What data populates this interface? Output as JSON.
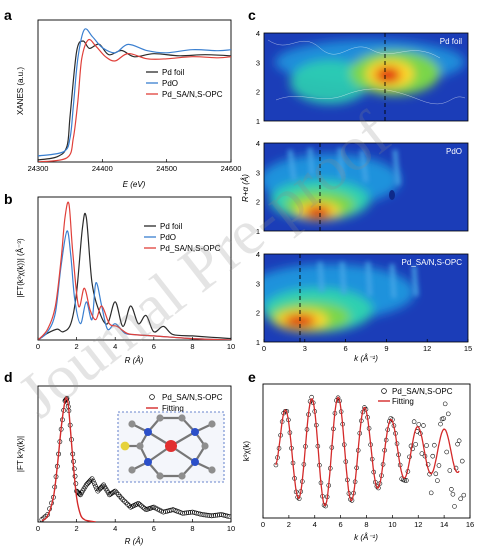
{
  "panels": {
    "a": {
      "label": "a",
      "ylabel": "XANES (a.u.)",
      "xlabel": "E (eV)",
      "xticks": [
        "24300",
        "24400",
        "24500",
        "24600"
      ],
      "legend": [
        "Pd foil",
        "PdO",
        "Pd_SA/N,S-OPC"
      ]
    },
    "b": {
      "label": "b",
      "ylabel": "|FT(k³χ(k))| (Å⁻³)",
      "xlabel": "R (Å)",
      "xticks": [
        "0",
        "2",
        "4",
        "6",
        "8",
        "10"
      ],
      "legend": [
        "Pd foil",
        "PdO",
        "Pd_SA/N,S-OPC"
      ]
    },
    "c": {
      "label": "c",
      "ylabel": "R+α (Å)",
      "xlabel": "k (Å⁻¹)",
      "xticks": [
        "0",
        "3",
        "6",
        "9",
        "12",
        "15"
      ],
      "yticks": [
        "1",
        "2",
        "3",
        "4"
      ],
      "subplots": [
        "Pd foil",
        "PdO",
        "Pd_SA/N,S-OPC"
      ]
    },
    "d": {
      "label": "d",
      "ylabel": "|FT k³χ(k)|",
      "xlabel": "R (Å)",
      "xticks": [
        "0",
        "2",
        "4",
        "6",
        "8",
        "10"
      ],
      "legend": [
        "Pd_SA/N,S-OPC",
        "Fitting"
      ]
    },
    "e": {
      "label": "e",
      "ylabel": "k³χ(k)",
      "xlabel": "k (Å⁻¹)",
      "xticks": [
        "0",
        "2",
        "4",
        "6",
        "8",
        "10",
        "12",
        "14",
        "16"
      ],
      "legend": [
        "Pd_SA/N,S-OPC",
        "Fitting"
      ]
    }
  },
  "watermark": "Journal Pre-proof",
  "colors": {
    "pd_foil": "#2b2b2b",
    "pdo": "#3a7fd0",
    "pd_sa": "#e0403a",
    "fitting": "#d42a2a",
    "wt_background": "#1b3db8",
    "wt_hot": "#e01010",
    "atom_pd": "#e23030",
    "atom_n": "#2b4fc9",
    "atom_s": "#e6d23a",
    "atom_c": "#8e8e8e"
  },
  "chart_data": [
    {
      "panel": "a",
      "type": "line",
      "xlabel": "E (eV)",
      "ylabel": "XANES (a.u.)",
      "xlim": [
        24300,
        24600
      ],
      "ylim": [
        0,
        1.35
      ],
      "series": [
        {
          "name": "Pd foil",
          "x": [
            24300,
            24330,
            24345,
            24350,
            24360,
            24370,
            24380,
            24395,
            24410,
            24430,
            24450,
            24480,
            24520,
            24560,
            24600
          ],
          "y": [
            0.02,
            0.05,
            0.15,
            0.45,
            1.05,
            1.15,
            1.08,
            1.12,
            1.02,
            1.06,
            1.0,
            1.03,
            1.01,
            1.02,
            1.01
          ]
        },
        {
          "name": "PdO",
          "x": [
            24300,
            24340,
            24350,
            24355,
            24362,
            24372,
            24385,
            24400,
            24420,
            24440,
            24470,
            24500,
            24540,
            24580,
            24600
          ],
          "y": [
            0.02,
            0.06,
            0.2,
            0.5,
            0.95,
            1.22,
            1.15,
            1.05,
            1.0,
            1.08,
            1.02,
            1.0,
            1.03,
            1.02,
            1.03
          ]
        },
        {
          "name": "Pd_SA/N,S-OPC",
          "x": [
            24300,
            24345,
            24355,
            24362,
            24368,
            24378,
            24390,
            24405,
            24420,
            24440,
            24470,
            24500,
            24540,
            24580,
            24600
          ],
          "y": [
            0.02,
            0.06,
            0.25,
            0.6,
            1.0,
            1.18,
            1.12,
            1.02,
            0.98,
            1.05,
            1.0,
            1.0,
            1.02,
            1.01,
            1.02
          ]
        }
      ]
    },
    {
      "panel": "b",
      "type": "line",
      "xlabel": "R (Å)",
      "ylabel": "|FT(k³χ(k))| (Å⁻³)",
      "xlim": [
        0,
        10
      ],
      "ylim": [
        0,
        1.05
      ],
      "series": [
        {
          "name": "Pd foil",
          "x": [
            0,
            0.5,
            1.0,
            1.3,
            1.7,
            2.0,
            2.3,
            2.5,
            2.8,
            3.2,
            3.6,
            4.0,
            4.4,
            4.8,
            5.2,
            5.6,
            6.0,
            6.5,
            7.0,
            8.0,
            9.0,
            10.0
          ],
          "y": [
            0.0,
            0.05,
            0.08,
            0.06,
            0.12,
            0.35,
            0.82,
            0.9,
            0.42,
            0.2,
            0.12,
            0.28,
            0.1,
            0.25,
            0.12,
            0.18,
            0.06,
            0.1,
            0.04,
            0.03,
            0.02,
            0.01
          ]
        },
        {
          "name": "PdO",
          "x": [
            0,
            0.5,
            0.9,
            1.2,
            1.5,
            1.7,
            1.9,
            2.2,
            2.5,
            2.8,
            3.0,
            3.3,
            3.6,
            4.0,
            4.5,
            5.0,
            6.0,
            7.0,
            8.0,
            10.0
          ],
          "y": [
            0.0,
            0.06,
            0.2,
            0.55,
            0.8,
            0.62,
            0.3,
            0.12,
            0.28,
            0.15,
            0.42,
            0.25,
            0.08,
            0.12,
            0.05,
            0.04,
            0.03,
            0.02,
            0.01,
            0.0
          ]
        },
        {
          "name": "Pd_SA/N,S-OPC",
          "x": [
            0,
            0.5,
            0.9,
            1.2,
            1.4,
            1.6,
            1.8,
            2.1,
            2.4,
            2.7,
            3.0,
            3.3,
            3.7,
            4.1,
            4.6,
            5.0,
            6.0,
            7.0,
            8.0,
            10.0
          ],
          "y": [
            0.0,
            0.08,
            0.25,
            0.6,
            0.9,
            1.0,
            0.65,
            0.25,
            0.38,
            0.22,
            0.15,
            0.25,
            0.12,
            0.1,
            0.05,
            0.04,
            0.03,
            0.02,
            0.01,
            0.0
          ]
        }
      ]
    },
    {
      "panel": "c",
      "type": "heatmap",
      "xlabel": "k (Å⁻¹)",
      "ylabel": "R+α (Å)",
      "xlim": [
        0,
        15
      ],
      "ylim": [
        1,
        4
      ],
      "series": [
        {
          "name": "Pd foil",
          "maximum": {
            "k": 8.5,
            "R": 2.4
          },
          "dashed_line_k": 8.9
        },
        {
          "name": "PdO",
          "maximum": {
            "k": 4.3,
            "R": 1.4
          },
          "dashed_line_k": 4.3
        },
        {
          "name": "Pd_SA/N,S-OPC",
          "maximum": {
            "k": 2.8,
            "R": 1.5
          },
          "dashed_line_k": 2.8
        }
      ]
    },
    {
      "panel": "d",
      "type": "line",
      "xlabel": "R (Å)",
      "ylabel": "|FT k³χ(k)|",
      "xlim": [
        0,
        10
      ],
      "ylim": [
        0,
        1.1
      ],
      "series": [
        {
          "name": "Pd_SA/N,S-OPC",
          "x": [
            0.2,
            0.5,
            0.8,
            1.0,
            1.2,
            1.4,
            1.5,
            1.6,
            1.8,
            2.0,
            2.2,
            2.5,
            2.8,
            3.1,
            3.4,
            3.7,
            4.0,
            4.4,
            4.8,
            5.2,
            5.6,
            6.0,
            6.5,
            7.0,
            7.5,
            8.0,
            8.5,
            9.0,
            9.5,
            10.0
          ],
          "y": [
            0.02,
            0.06,
            0.2,
            0.45,
            0.75,
            0.98,
            1.0,
            0.9,
            0.55,
            0.25,
            0.22,
            0.3,
            0.35,
            0.25,
            0.3,
            0.22,
            0.25,
            0.18,
            0.12,
            0.15,
            0.1,
            0.12,
            0.08,
            0.1,
            0.07,
            0.08,
            0.06,
            0.05,
            0.06,
            0.04
          ]
        },
        {
          "name": "Fitting",
          "x": [
            0.2,
            0.5,
            0.8,
            1.0,
            1.2,
            1.4,
            1.5,
            1.6,
            1.8,
            2.0,
            2.2,
            2.4,
            2.6,
            3.0
          ],
          "y": [
            0.01,
            0.05,
            0.2,
            0.45,
            0.76,
            0.98,
            1.0,
            0.9,
            0.52,
            0.2,
            0.06,
            0.02,
            0.01,
            0.0
          ]
        }
      ]
    },
    {
      "panel": "e",
      "type": "line",
      "xlabel": "k (Å⁻¹)",
      "ylabel": "k³χ(k)",
      "xlim": [
        0,
        16
      ],
      "ylim": [
        -1.1,
        1.1
      ],
      "series": [
        {
          "name": "Pd_SA/N,S-OPC",
          "description": "scatter of experimental data, oscillation growing noisy beyond k≈10"
        },
        {
          "name": "Fitting",
          "description": "damped oscillation fit"
        }
      ]
    }
  ]
}
